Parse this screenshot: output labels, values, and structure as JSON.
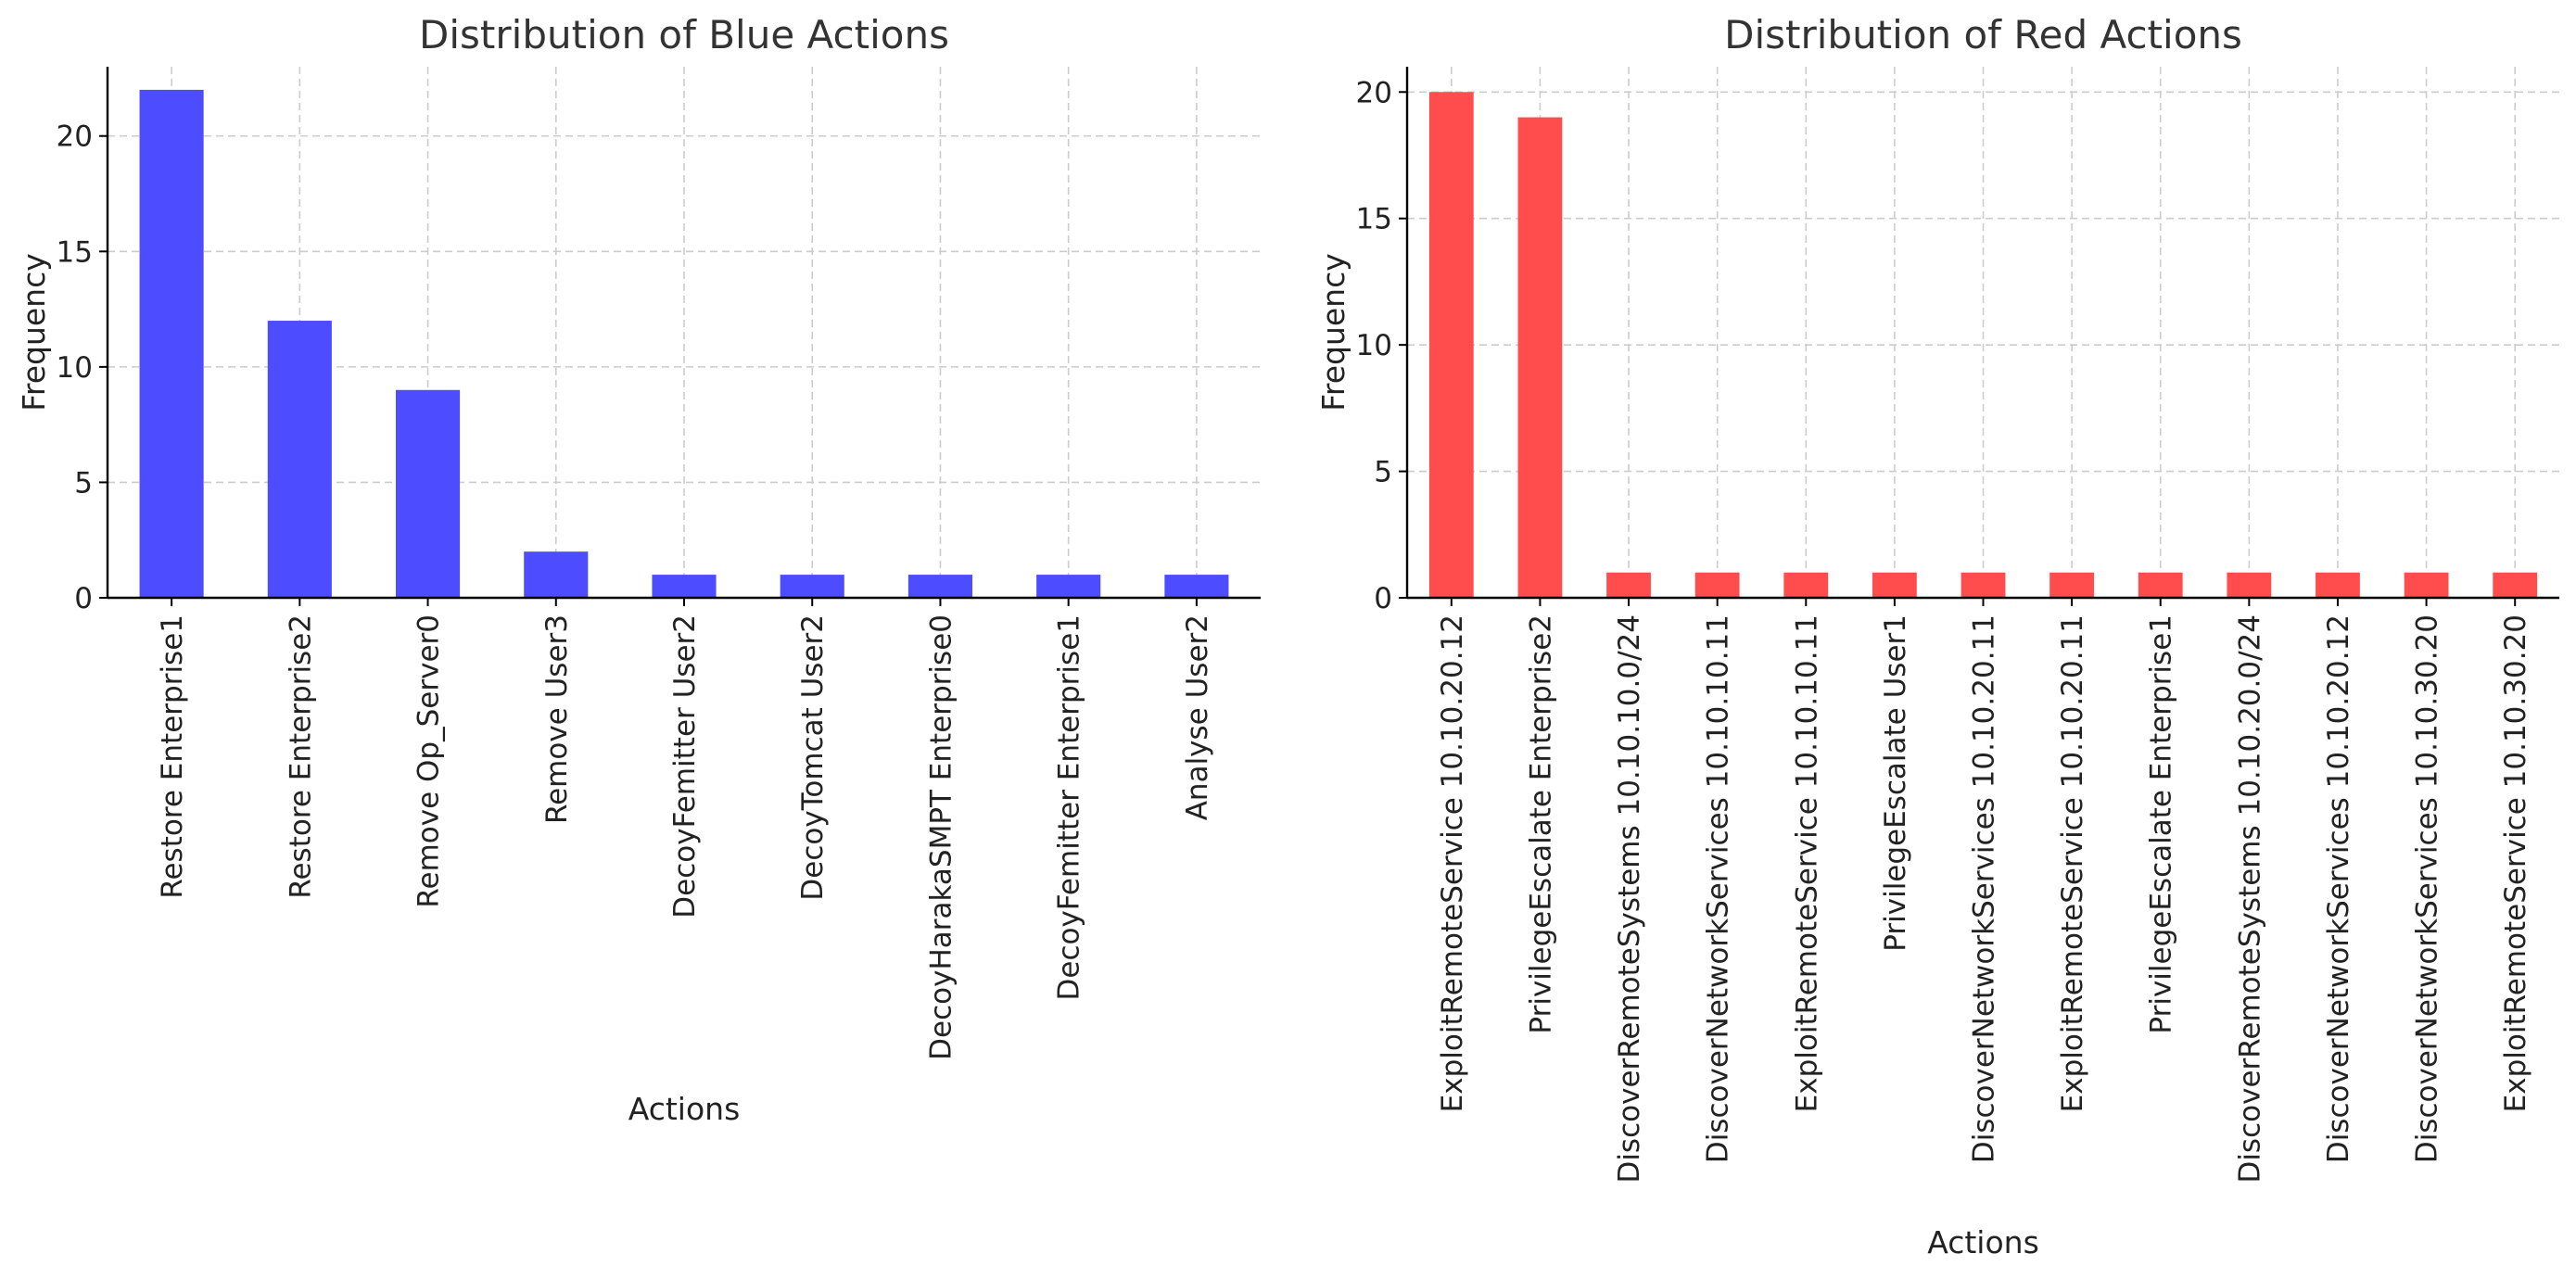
{
  "chart_data": [
    {
      "type": "bar",
      "title": "Distribution of Blue Actions",
      "xlabel": "Actions",
      "ylabel": "Frequency",
      "ylim": [
        0,
        23
      ],
      "yticks": [
        0,
        5,
        10,
        15,
        20
      ],
      "grid": true,
      "color": "#4d4dff",
      "categories": [
        "Restore Enterprise1",
        "Restore Enterprise2",
        "Remove Op_Server0",
        "Remove User3",
        "DecoyFemitter User2",
        "DecoyTomcat User2",
        "DecoyHarakaSMPT Enterprise0",
        "DecoyFemitter Enterprise1",
        "Analyse User2"
      ],
      "values": [
        22,
        12,
        9,
        2,
        1,
        1,
        1,
        1,
        1
      ]
    },
    {
      "type": "bar",
      "title": "Distribution of Red Actions",
      "xlabel": "Actions",
      "ylabel": "Frequency",
      "ylim": [
        0,
        21
      ],
      "yticks": [
        0,
        5,
        10,
        15,
        20
      ],
      "grid": true,
      "color": "#ff4d4d",
      "categories": [
        "ExploitRemoteService 10.10.20.12",
        "PrivilegeEscalate Enterprise2",
        "DiscoverRemoteSystems 10.10.10.0/24",
        "DiscoverNetworkServices 10.10.10.11",
        "ExploitRemoteService 10.10.10.11",
        "PrivilegeEscalate User1",
        "DiscoverNetworkServices 10.10.20.11",
        "ExploitRemoteService 10.10.20.11",
        "PrivilegeEscalate Enterprise1",
        "DiscoverRemoteSystems 10.10.20.0/24",
        "DiscoverNetworkServices 10.10.20.12",
        "DiscoverNetworkServices 10.10.30.20",
        "ExploitRemoteService 10.10.30.20"
      ],
      "values": [
        20,
        19,
        1,
        1,
        1,
        1,
        1,
        1,
        1,
        1,
        1,
        1,
        1
      ]
    }
  ]
}
